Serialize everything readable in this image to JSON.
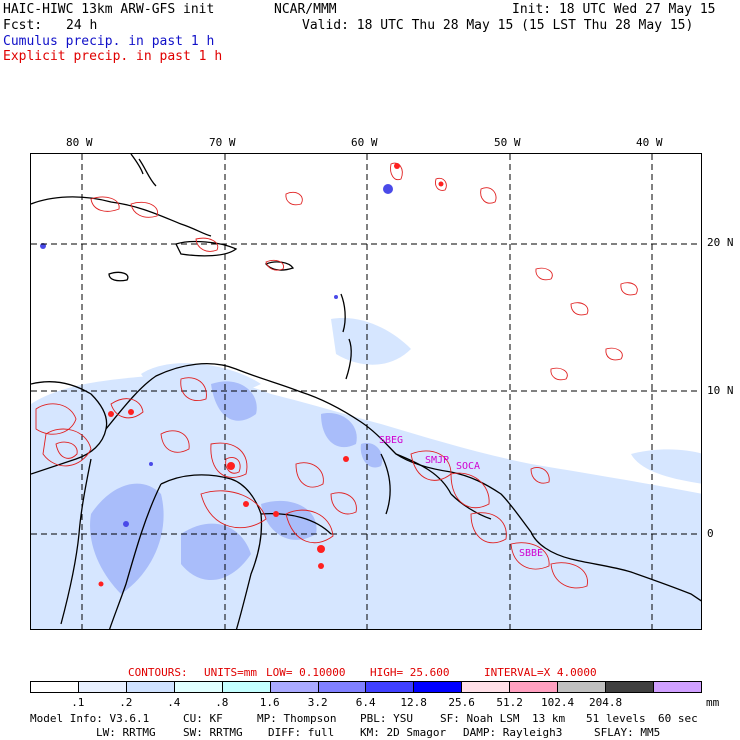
{
  "header": {
    "model": "HAIC-HIWC 13km ARW-GFS init",
    "org": "NCAR/MMM",
    "init": "Init: 18 UTC Wed 27 May 15",
    "fcst_label": "Fcst:",
    "fcst_value": "24 h",
    "valid": "Valid: 18 UTC Thu 28 May 15 (15 LST Thu 28 May 15)",
    "cumulus": "Cumulus precip. in past 1 h",
    "explicit": "Explicit precip. in past 1 h"
  },
  "map": {
    "lon_labels": [
      "80 W",
      "70 W",
      "60 W",
      "50 W",
      "40 W"
    ],
    "lat_labels": [
      "20 N",
      "10 N",
      "0"
    ],
    "place_labels": [
      "SBEG",
      "SMJP",
      "SOCA",
      "SBBE"
    ]
  },
  "contours": {
    "label": "CONTOURS:",
    "units": "UNITS=mm",
    "low": "LOW= 0.10000",
    "high": "HIGH= 25.600",
    "interval": "INTERVAL=X 4.0000"
  },
  "colorbar": {
    "colors": [
      "#ffffff",
      "#e8f0ff",
      "#cfe2ff",
      "#e0ffff",
      "#c4ffff",
      "#aaaaff",
      "#8080ff",
      "#4040ff",
      "#0000ff",
      "#ffe0e8",
      "#ffa0c0",
      "#c0c0c0",
      "#404040",
      "#d0a0ff"
    ],
    "labels": [
      ".1",
      ".2",
      ".4",
      ".8",
      "1.6",
      "3.2",
      "6.4",
      "12.8",
      "25.6",
      "51.2",
      "102.4",
      "204.8"
    ],
    "unit": "mm"
  },
  "footer": {
    "line1": [
      "Model Info: V3.6.1",
      "CU: KF",
      "MP: Thompson",
      "PBL: YSU",
      "SF: Noah LSM",
      "13 km",
      "51 levels",
      "60 sec"
    ],
    "line2": [
      "LW: RRTMG",
      "SW: RRTMG",
      "DIFF: full",
      "KM: 2D Smagor",
      "DAMP: Rayleigh3",
      "SFLAY: MM5"
    ]
  }
}
